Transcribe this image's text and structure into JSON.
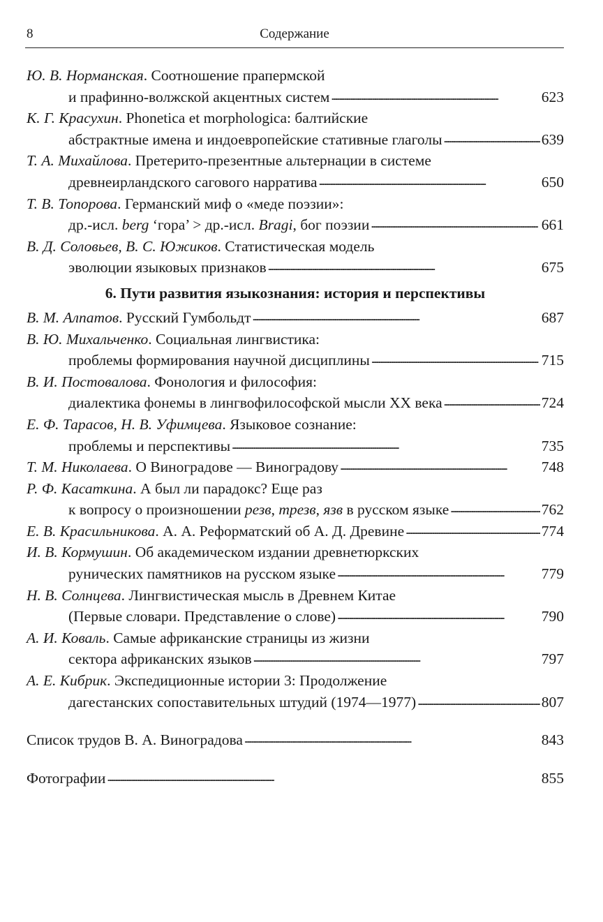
{
  "header": {
    "page_number": "8",
    "title": "Содержание"
  },
  "group1": [
    {
      "lines": [
        [
          {
            "t": "Ю. В. Норманская",
            "i": true
          },
          {
            "t": ". Соотношение прапермской"
          }
        ],
        [
          {
            "t": "и прафинно-волжской акцентных систем "
          }
        ]
      ],
      "page": "623"
    },
    {
      "lines": [
        [
          {
            "t": "К. Г. Красухин",
            "i": true
          },
          {
            "t": ". Phonetica et morphologica: балтийские"
          }
        ],
        [
          {
            "t": "абстрактные имена и индоевропейские стативные глаголы"
          }
        ]
      ],
      "page": "639"
    },
    {
      "lines": [
        [
          {
            "t": "Т. А. Михайлова",
            "i": true
          },
          {
            "t": ". Претерито-презентные альтернации в системе"
          }
        ],
        [
          {
            "t": "древнеирландского сагового нарратива "
          }
        ]
      ],
      "page": "650"
    },
    {
      "lines": [
        [
          {
            "t": "Т. В. Топорова",
            "i": true
          },
          {
            "t": ". Германский миф о «меде поэзии»:"
          }
        ],
        [
          {
            "t": "др.-исл. "
          },
          {
            "t": "berg",
            "i": true
          },
          {
            "t": " ‘гора’ > др.-исл. "
          },
          {
            "t": "Bragi",
            "i": true
          },
          {
            "t": ", бог поэзии"
          }
        ]
      ],
      "page": "661"
    },
    {
      "lines": [
        [
          {
            "t": "В. Д. Соловьев, В. С. Южиков",
            "i": true
          },
          {
            "t": ". Статистическая модель"
          }
        ],
        [
          {
            "t": "эволюции языковых признаков "
          }
        ]
      ],
      "page": "675"
    }
  ],
  "section_title": "6. Пути развития языкознания: история и перспективы",
  "group2": [
    {
      "lines": [
        [
          {
            "t": "В. М. Алпатов",
            "i": true
          },
          {
            "t": ". Русский Гумбольдт"
          }
        ]
      ],
      "page": "687"
    },
    {
      "lines": [
        [
          {
            "t": "В. Ю. Михальченко",
            "i": true
          },
          {
            "t": ". Социальная лингвистика:"
          }
        ],
        [
          {
            "t": "проблемы формирования научной дисциплины"
          }
        ]
      ],
      "page": "715"
    },
    {
      "lines": [
        [
          {
            "t": "В. И. Постовалова",
            "i": true
          },
          {
            "t": ". Фонология и философия:"
          }
        ],
        [
          {
            "t": "диалектика фонемы в лингвофилософской мысли XX века"
          }
        ]
      ],
      "page": "724"
    },
    {
      "lines": [
        [
          {
            "t": "Е. Ф. Тарасов, Н. В. Уфимцева",
            "i": true
          },
          {
            "t": ". Языковое сознание:"
          }
        ],
        [
          {
            "t": "проблемы и перспективы "
          }
        ]
      ],
      "page": "735"
    },
    {
      "lines": [
        [
          {
            "t": "Т. М. Николаева",
            "i": true
          },
          {
            "t": ". О Виноградове — Виноградову "
          }
        ]
      ],
      "page": "748"
    },
    {
      "lines": [
        [
          {
            "t": "Р. Ф. Касаткина",
            "i": true
          },
          {
            "t": ". А был ли парадокс? Еще раз"
          }
        ],
        [
          {
            "t": "к вопросу о произношении "
          },
          {
            "t": "резв",
            "i": true
          },
          {
            "t": ", "
          },
          {
            "t": "трезв",
            "i": true
          },
          {
            "t": ", "
          },
          {
            "t": "язв",
            "i": true
          },
          {
            "t": " в русском языке"
          }
        ]
      ],
      "page": "762"
    },
    {
      "lines": [
        [
          {
            "t": "Е. В. Красильникова",
            "i": true
          },
          {
            "t": ". А. А. Реформатский об А. Д. Древине"
          }
        ]
      ],
      "page": "774"
    },
    {
      "lines": [
        [
          {
            "t": "И. В. Кормушин",
            "i": true
          },
          {
            "t": ". Об академическом издании древнетюркских"
          }
        ],
        [
          {
            "t": "рунических памятников на русском языке"
          }
        ]
      ],
      "page": "779"
    },
    {
      "lines": [
        [
          {
            "t": "Н. В. Солнцева",
            "i": true
          },
          {
            "t": ". Лингвистическая мысль в Древнем Китае"
          }
        ],
        [
          {
            "t": "(Первые словари. Представление о слове)"
          }
        ]
      ],
      "page": "790"
    },
    {
      "lines": [
        [
          {
            "t": "А. И. Коваль",
            "i": true
          },
          {
            "t": ". Самые африканские страницы из жизни"
          }
        ],
        [
          {
            "t": "сектора африканских языков "
          }
        ]
      ],
      "page": "797"
    },
    {
      "lines": [
        [
          {
            "t": "А. Е. Кибрик",
            "i": true
          },
          {
            "t": ". Экспедиционные истории 3: Продолжение"
          }
        ],
        [
          {
            "t": "дагестанских сопоставительных штудий (1974—1977)"
          }
        ]
      ],
      "page": "807"
    }
  ],
  "extras": [
    {
      "lines": [
        [
          {
            "t": "Список трудов В. А. Виноградова"
          }
        ]
      ],
      "page": "843"
    },
    {
      "lines": [
        [
          {
            "t": "Фотографии "
          }
        ]
      ],
      "page": "855"
    }
  ]
}
